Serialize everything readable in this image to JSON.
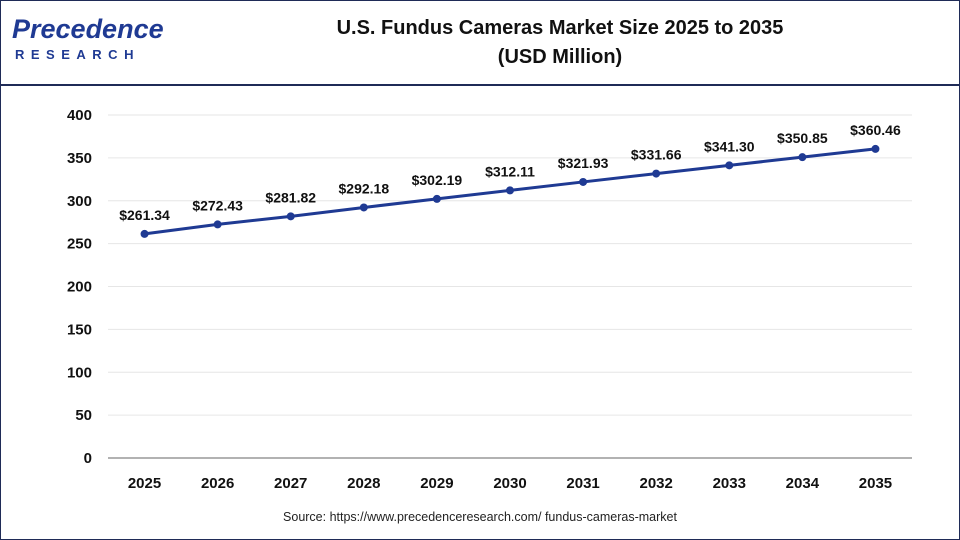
{
  "header": {
    "logo_word": "Precedence",
    "logo_sub": "RESEARCH",
    "title_line1": "U.S. Fundus Cameras Market Size 2025 to 2035",
    "title_line2": "(USD Million)"
  },
  "chart_data": {
    "type": "line",
    "title": "U.S. Fundus Cameras Market Size 2025 to 2035 (USD Million)",
    "xlabel": "",
    "ylabel": "",
    "categories": [
      "2025",
      "2026",
      "2027",
      "2028",
      "2029",
      "2030",
      "2031",
      "2032",
      "2033",
      "2034",
      "2035"
    ],
    "values": [
      261.34,
      272.43,
      281.82,
      292.18,
      302.19,
      312.11,
      321.93,
      331.66,
      341.3,
      350.85,
      360.46
    ],
    "data_labels": [
      "$261.34",
      "$272.43",
      "$281.82",
      "$292.18",
      "$302.19",
      "$312.11",
      "$321.93",
      "$331.66",
      "$341.30",
      "$350.85",
      "$360.46"
    ],
    "ylim": [
      0,
      400
    ],
    "yticks": [
      0,
      50,
      100,
      150,
      200,
      250,
      300,
      350,
      400
    ],
    "grid": true,
    "legend": "none",
    "line_color": "#1f3a93"
  },
  "footer": {
    "source": "Source: https://www.precedenceresearch.com/ fundus-cameras-market"
  }
}
